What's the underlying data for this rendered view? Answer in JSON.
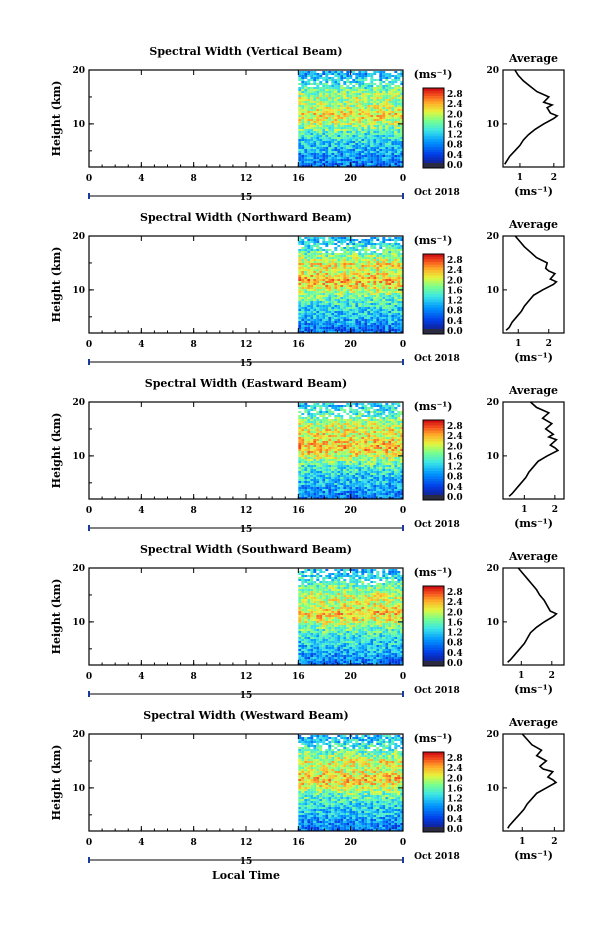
{
  "chart_data": [
    {
      "type": "heatmap",
      "title": "Spectral Width (Vertical Beam)",
      "ylabel": "Height (km)",
      "xlabel": "",
      "x_ticks": [
        "0",
        "4",
        "8",
        "12",
        "16",
        "20",
        "0"
      ],
      "xlim": [
        0,
        24
      ],
      "ylim": [
        2,
        20
      ],
      "y_ticks": [
        "20",
        "10"
      ],
      "data_start_hour": 16,
      "day_label": "15",
      "month_label": "Oct 2018",
      "colorbar": {
        "unit": "(ms⁻¹)",
        "ticks": [
          "2.8",
          "2.4",
          "2.0",
          "1.6",
          "1.2",
          "0.8",
          "0.4",
          "0.0"
        ],
        "min": 0,
        "max": 2.8
      },
      "height_profile": [
        [
          2,
          0.6
        ],
        [
          3,
          0.7
        ],
        [
          4,
          0.8
        ],
        [
          5,
          0.95
        ],
        [
          6,
          1.05
        ],
        [
          7,
          1.15
        ],
        [
          8,
          1.3
        ],
        [
          9,
          1.5
        ],
        [
          10,
          1.75
        ],
        [
          11,
          1.95
        ],
        [
          12,
          2.05
        ],
        [
          13,
          1.85
        ],
        [
          14,
          1.7
        ],
        [
          15,
          1.85
        ],
        [
          16,
          1.6
        ],
        [
          17,
          1.4
        ],
        [
          18,
          1.2
        ],
        [
          19,
          1.0
        ],
        [
          20,
          0.9
        ]
      ],
      "average": {
        "title": "Average",
        "xlabel": "(ms⁻¹)",
        "x_ticks": [
          "1",
          "2"
        ],
        "xlim": [
          0.5,
          2.3
        ],
        "y_ticks": [
          "20",
          "10"
        ],
        "ylim": [
          2,
          20
        ],
        "profile": [
          [
            2.5,
            0.55
          ],
          [
            3,
            0.6
          ],
          [
            4,
            0.7
          ],
          [
            5,
            0.85
          ],
          [
            6,
            1.0
          ],
          [
            7,
            1.1
          ],
          [
            8,
            1.25
          ],
          [
            9,
            1.45
          ],
          [
            10,
            1.7
          ],
          [
            11,
            2.0
          ],
          [
            11.5,
            2.1
          ],
          [
            12,
            1.9
          ],
          [
            13,
            1.8
          ],
          [
            13.5,
            1.95
          ],
          [
            14,
            1.7
          ],
          [
            15,
            1.85
          ],
          [
            16,
            1.5
          ],
          [
            17,
            1.3
          ],
          [
            18,
            1.1
          ],
          [
            19,
            0.95
          ],
          [
            20,
            0.85
          ]
        ]
      }
    },
    {
      "type": "heatmap",
      "title": "Spectral Width (Northward Beam)",
      "ylabel": "Height (km)",
      "xlabel": "",
      "x_ticks": [
        "0",
        "4",
        "8",
        "12",
        "16",
        "20",
        "0"
      ],
      "xlim": [
        0,
        24
      ],
      "ylim": [
        2,
        20
      ],
      "y_ticks": [
        "20",
        "10"
      ],
      "data_start_hour": 16,
      "day_label": "15",
      "month_label": "Oct 2018",
      "colorbar": {
        "unit": "(ms⁻¹)",
        "ticks": [
          "2.8",
          "2.4",
          "2.0",
          "1.6",
          "1.2",
          "0.8",
          "0.4",
          "0.0"
        ],
        "min": 0,
        "max": 2.8
      },
      "height_profile": [
        [
          2,
          0.6
        ],
        [
          3,
          0.7
        ],
        [
          4,
          0.85
        ],
        [
          5,
          1.0
        ],
        [
          6,
          1.1
        ],
        [
          7,
          1.2
        ],
        [
          8,
          1.35
        ],
        [
          9,
          1.55
        ],
        [
          10,
          1.8
        ],
        [
          11,
          2.1
        ],
        [
          12,
          2.2
        ],
        [
          13,
          2.0
        ],
        [
          14,
          1.9
        ],
        [
          15,
          2.0
        ],
        [
          16,
          1.7
        ],
        [
          17,
          1.5
        ],
        [
          18,
          1.3
        ],
        [
          19,
          1.1
        ],
        [
          20,
          1.0
        ]
      ],
      "average": {
        "title": "Average",
        "xlabel": "(ms⁻¹)",
        "x_ticks": [
          "1",
          "2"
        ],
        "xlim": [
          0.5,
          2.5
        ],
        "y_ticks": [
          "20",
          "10"
        ],
        "ylim": [
          2,
          20
        ],
        "profile": [
          [
            2.5,
            0.6
          ],
          [
            3,
            0.7
          ],
          [
            4,
            0.8
          ],
          [
            5,
            0.95
          ],
          [
            6,
            1.1
          ],
          [
            7,
            1.2
          ],
          [
            8,
            1.35
          ],
          [
            9,
            1.5
          ],
          [
            10,
            1.8
          ],
          [
            11,
            2.15
          ],
          [
            11.5,
            2.25
          ],
          [
            12,
            2.05
          ],
          [
            13,
            2.2
          ],
          [
            13.5,
            2.0
          ],
          [
            14,
            1.9
          ],
          [
            15,
            1.95
          ],
          [
            16,
            1.6
          ],
          [
            17,
            1.4
          ],
          [
            18,
            1.2
          ],
          [
            19,
            1.05
          ],
          [
            20,
            0.9
          ]
        ]
      }
    },
    {
      "type": "heatmap",
      "title": "Spectral Width (Eastward Beam)",
      "ylabel": "Height (km)",
      "xlabel": "",
      "x_ticks": [
        "0",
        "4",
        "8",
        "12",
        "16",
        "20",
        "0"
      ],
      "xlim": [
        0,
        24
      ],
      "ylim": [
        2,
        20
      ],
      "y_ticks": [
        "20",
        "10"
      ],
      "data_start_hour": 16,
      "day_label": "15",
      "month_label": "Oct 2018",
      "colorbar": {
        "unit": "(ms⁻¹)",
        "ticks": [
          "2.8",
          "2.4",
          "2.0",
          "1.6",
          "1.2",
          "0.8",
          "0.4",
          "0.0"
        ],
        "min": 0,
        "max": 2.8
      },
      "height_profile": [
        [
          2,
          0.6
        ],
        [
          3,
          0.7
        ],
        [
          4,
          0.85
        ],
        [
          5,
          1.0
        ],
        [
          6,
          1.1
        ],
        [
          7,
          1.2
        ],
        [
          8,
          1.35
        ],
        [
          9,
          1.55
        ],
        [
          10,
          1.85
        ],
        [
          11,
          2.1
        ],
        [
          12,
          2.2
        ],
        [
          13,
          2.05
        ],
        [
          14,
          1.95
        ],
        [
          15,
          2.0
        ],
        [
          16,
          1.8
        ],
        [
          17,
          1.6
        ],
        [
          18,
          1.4
        ],
        [
          19,
          1.2
        ],
        [
          20,
          1.0
        ]
      ],
      "average": {
        "title": "Average",
        "xlabel": "(ms⁻¹)",
        "x_ticks": [
          "1",
          "2"
        ],
        "xlim": [
          0.3,
          2.3
        ],
        "y_ticks": [
          "20",
          "10"
        ],
        "ylim": [
          2,
          20
        ],
        "profile": [
          [
            2.5,
            0.5
          ],
          [
            3,
            0.6
          ],
          [
            4,
            0.75
          ],
          [
            5,
            0.9
          ],
          [
            6,
            1.05
          ],
          [
            7,
            1.15
          ],
          [
            8,
            1.3
          ],
          [
            9,
            1.45
          ],
          [
            10,
            1.75
          ],
          [
            11,
            2.1
          ],
          [
            11.5,
            2.0
          ],
          [
            12,
            1.85
          ],
          [
            13,
            2.05
          ],
          [
            13.5,
            1.8
          ],
          [
            14,
            1.95
          ],
          [
            15,
            1.7
          ],
          [
            16,
            1.9
          ],
          [
            17,
            1.6
          ],
          [
            18,
            1.8
          ],
          [
            19,
            1.4
          ],
          [
            20,
            1.2
          ]
        ]
      }
    },
    {
      "type": "heatmap",
      "title": "Spectral Width (Southward Beam)",
      "ylabel": "Height (km)",
      "xlabel": "",
      "x_ticks": [
        "0",
        "4",
        "8",
        "12",
        "16",
        "20",
        "0"
      ],
      "xlim": [
        0,
        24
      ],
      "ylim": [
        2,
        20
      ],
      "y_ticks": [
        "20",
        "10"
      ],
      "data_start_hour": 16,
      "day_label": "15",
      "month_label": "Oct 2018",
      "colorbar": {
        "unit": "(ms⁻¹)",
        "ticks": [
          "2.8",
          "2.4",
          "2.0",
          "1.6",
          "1.2",
          "0.8",
          "0.4",
          "0.0"
        ],
        "min": 0,
        "max": 2.8
      },
      "height_profile": [
        [
          2,
          0.6
        ],
        [
          3,
          0.7
        ],
        [
          4,
          0.85
        ],
        [
          5,
          1.0
        ],
        [
          6,
          1.1
        ],
        [
          7,
          1.2
        ],
        [
          8,
          1.35
        ],
        [
          9,
          1.55
        ],
        [
          10,
          1.8
        ],
        [
          11,
          2.05
        ],
        [
          12,
          2.15
        ],
        [
          13,
          1.95
        ],
        [
          14,
          1.85
        ],
        [
          15,
          1.9
        ],
        [
          16,
          1.7
        ],
        [
          17,
          1.5
        ],
        [
          18,
          1.3
        ],
        [
          19,
          1.1
        ],
        [
          20,
          1.0
        ]
      ],
      "average": {
        "title": "Average",
        "xlabel": "(ms⁻¹)",
        "x_ticks": [
          "1",
          "2"
        ],
        "xlim": [
          0.4,
          2.4
        ],
        "y_ticks": [
          "20",
          "10"
        ],
        "ylim": [
          2,
          20
        ],
        "profile": [
          [
            2.5,
            0.55
          ],
          [
            3,
            0.65
          ],
          [
            4,
            0.8
          ],
          [
            5,
            0.95
          ],
          [
            6,
            1.1
          ],
          [
            7,
            1.2
          ],
          [
            8,
            1.3
          ],
          [
            9,
            1.5
          ],
          [
            10,
            1.75
          ],
          [
            11,
            2.05
          ],
          [
            11.5,
            2.15
          ],
          [
            12,
            1.95
          ],
          [
            13,
            1.85
          ],
          [
            14,
            1.75
          ],
          [
            15,
            1.6
          ],
          [
            16,
            1.5
          ],
          [
            17,
            1.35
          ],
          [
            18,
            1.2
          ],
          [
            19,
            1.05
          ],
          [
            20,
            0.9
          ]
        ]
      }
    },
    {
      "type": "heatmap",
      "title": "Spectral Width (Westward Beam)",
      "ylabel": "Height (km)",
      "xlabel": "Local Time",
      "x_ticks": [
        "0",
        "4",
        "8",
        "12",
        "16",
        "20",
        "0"
      ],
      "xlim": [
        0,
        24
      ],
      "ylim": [
        2,
        20
      ],
      "y_ticks": [
        "20",
        "10"
      ],
      "data_start_hour": 16,
      "day_label": "15",
      "month_label": "Oct 2018",
      "colorbar": {
        "unit": "(ms⁻¹)",
        "ticks": [
          "2.8",
          "2.4",
          "2.0",
          "1.6",
          "1.2",
          "0.8",
          "0.4",
          "0.0"
        ],
        "min": 0,
        "max": 2.8
      },
      "height_profile": [
        [
          2,
          0.6
        ],
        [
          3,
          0.7
        ],
        [
          4,
          0.85
        ],
        [
          5,
          1.0
        ],
        [
          6,
          1.1
        ],
        [
          7,
          1.2
        ],
        [
          8,
          1.35
        ],
        [
          9,
          1.55
        ],
        [
          10,
          1.8
        ],
        [
          11,
          2.05
        ],
        [
          12,
          2.15
        ],
        [
          13,
          1.95
        ],
        [
          14,
          1.85
        ],
        [
          15,
          1.95
        ],
        [
          16,
          1.7
        ],
        [
          17,
          1.5
        ],
        [
          18,
          1.3
        ],
        [
          19,
          1.1
        ],
        [
          20,
          1.0
        ]
      ],
      "average": {
        "title": "Average",
        "xlabel": "(ms⁻¹)",
        "x_ticks": [
          "1",
          "2"
        ],
        "xlim": [
          0.4,
          2.3
        ],
        "y_ticks": [
          "20",
          "10"
        ],
        "ylim": [
          2,
          20
        ],
        "profile": [
          [
            2.5,
            0.55
          ],
          [
            3,
            0.6
          ],
          [
            4,
            0.75
          ],
          [
            5,
            0.9
          ],
          [
            6,
            1.05
          ],
          [
            7,
            1.15
          ],
          [
            8,
            1.3
          ],
          [
            9,
            1.45
          ],
          [
            10,
            1.75
          ],
          [
            11,
            2.05
          ],
          [
            11.5,
            1.95
          ],
          [
            12,
            1.8
          ],
          [
            13,
            1.95
          ],
          [
            13.5,
            1.65
          ],
          [
            14,
            1.55
          ],
          [
            15,
            1.75
          ],
          [
            16,
            1.45
          ],
          [
            17,
            1.6
          ],
          [
            18,
            1.3
          ],
          [
            19,
            1.15
          ],
          [
            20,
            1.0
          ]
        ]
      }
    }
  ]
}
